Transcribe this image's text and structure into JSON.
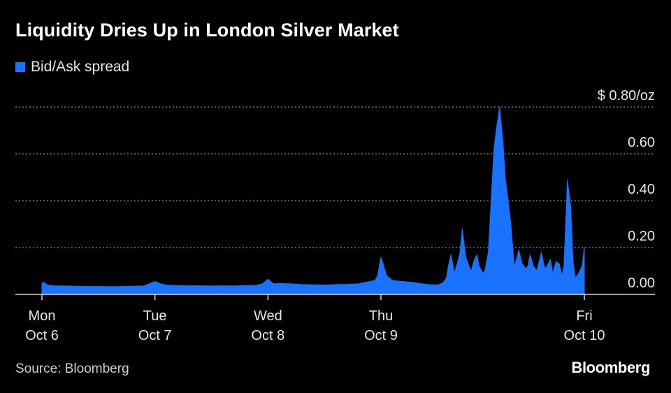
{
  "title": "Liquidity Dries Up in London Silver Market",
  "legend": {
    "label": "Bid/Ask spread",
    "color": "#1a73ff"
  },
  "source": "Source: Bloomberg",
  "brand": "Bloomberg",
  "chart_data": {
    "type": "area",
    "ylim": [
      0,
      0.8
    ],
    "yticks": [
      {
        "value": 0.8,
        "label": "$ 0.80/oz"
      },
      {
        "value": 0.6,
        "label": "0.60"
      },
      {
        "value": 0.4,
        "label": "0.40"
      },
      {
        "value": 0.2,
        "label": "0.20"
      },
      {
        "value": 0.0,
        "label": "0.00"
      }
    ],
    "grid": true,
    "xlim": [
      0,
      4.8
    ],
    "xticks": [
      {
        "value": 0,
        "day": "Mon",
        "date": "Oct 6"
      },
      {
        "value": 1,
        "day": "Tue",
        "date": "Oct 7"
      },
      {
        "value": 2,
        "day": "Wed",
        "date": "Oct 8"
      },
      {
        "value": 3,
        "day": "Thu",
        "date": "Oct 9"
      },
      {
        "value": 4.8,
        "day": "Fri",
        "date": "Oct 10"
      }
    ],
    "series": [
      {
        "name": "Bid/Ask spread",
        "color": "#1a73ff",
        "x": [
          0,
          0.02,
          0.05,
          0.1,
          0.2,
          0.3,
          0.4,
          0.5,
          0.6,
          0.7,
          0.8,
          0.9,
          0.95,
          1.0,
          1.05,
          1.1,
          1.2,
          1.3,
          1.4,
          1.5,
          1.6,
          1.7,
          1.8,
          1.9,
          1.95,
          2.0,
          2.05,
          2.1,
          2.2,
          2.3,
          2.4,
          2.5,
          2.6,
          2.7,
          2.8,
          2.85,
          2.9,
          2.95,
          2.97,
          3.0,
          3.05,
          3.1,
          3.2,
          3.3,
          3.4,
          3.5,
          3.55,
          3.58,
          3.6,
          3.62,
          3.65,
          3.68,
          3.7,
          3.72,
          3.75,
          3.78,
          3.8,
          3.82,
          3.85,
          3.87,
          3.9,
          3.92,
          3.95,
          3.97,
          4.0,
          4.02,
          4.05,
          4.08,
          4.1,
          4.12,
          4.15,
          4.18,
          4.2,
          4.22,
          4.25,
          4.28,
          4.3,
          4.32,
          4.35,
          4.38,
          4.4,
          4.42,
          4.45,
          4.47,
          4.5,
          4.52,
          4.55,
          4.58,
          4.6,
          4.62,
          4.65,
          4.68,
          4.7,
          4.72,
          4.75,
          4.78,
          4.8
        ],
        "values": [
          0.05,
          0.05,
          0.04,
          0.037,
          0.036,
          0.035,
          0.034,
          0.034,
          0.033,
          0.034,
          0.035,
          0.036,
          0.045,
          0.055,
          0.045,
          0.04,
          0.038,
          0.037,
          0.037,
          0.036,
          0.037,
          0.036,
          0.038,
          0.039,
          0.045,
          0.065,
          0.045,
          0.047,
          0.045,
          0.042,
          0.041,
          0.04,
          0.042,
          0.043,
          0.045,
          0.05,
          0.055,
          0.06,
          0.08,
          0.16,
          0.08,
          0.06,
          0.055,
          0.05,
          0.043,
          0.04,
          0.05,
          0.07,
          0.13,
          0.17,
          0.09,
          0.14,
          0.18,
          0.28,
          0.16,
          0.12,
          0.1,
          0.14,
          0.17,
          0.12,
          0.09,
          0.1,
          0.18,
          0.35,
          0.62,
          0.7,
          0.8,
          0.65,
          0.5,
          0.42,
          0.3,
          0.12,
          0.15,
          0.19,
          0.13,
          0.11,
          0.12,
          0.17,
          0.12,
          0.1,
          0.14,
          0.18,
          0.11,
          0.12,
          0.15,
          0.09,
          0.14,
          0.13,
          0.08,
          0.12,
          0.49,
          0.37,
          0.14,
          0.07,
          0.09,
          0.12,
          0.2
        ]
      }
    ]
  }
}
